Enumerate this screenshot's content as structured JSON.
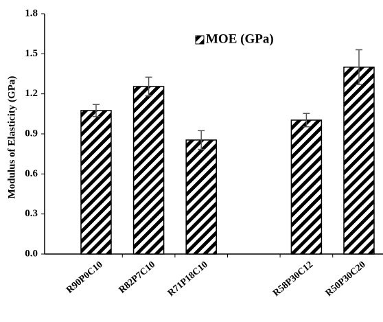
{
  "chart_data": {
    "type": "bar",
    "y_label": "Modulus of Elasticity (GPa)",
    "categories": [
      "R90P0C10",
      "R82P7C10",
      "R71P18C10",
      null,
      "R58P30C12",
      "R50P30C20"
    ],
    "series": [
      {
        "name": "MOE (GPa)",
        "color": "#000000",
        "values": [
          1.075,
          1.255,
          0.854,
          null,
          1.003,
          1.4
        ],
        "errors": [
          0.045,
          0.07,
          0.07,
          null,
          0.05,
          0.13
        ]
      }
    ],
    "ylim": [
      0,
      1.8
    ],
    "yticks": [
      {
        "value": 0,
        "label": "0.0"
      },
      0.3,
      0.6,
      0.9,
      1.2,
      1.5,
      1.8
    ],
    "grid": false,
    "legend": "top"
  }
}
